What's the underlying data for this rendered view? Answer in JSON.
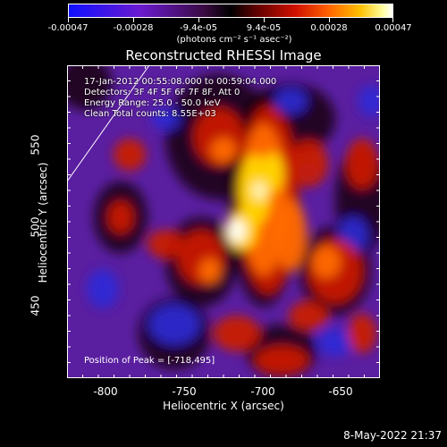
{
  "colorbar": {
    "tick_labels": [
      "-0.00047",
      "-0.00028",
      "-9.4e-05",
      "9.4e-05",
      "0.00028",
      "0.00047"
    ],
    "tick_values": [
      -0.00047,
      -0.00028,
      -9.4e-05,
      9.4e-05,
      0.00028,
      0.00047
    ],
    "unit": "(photons cm⁻² s⁻¹ asec⁻²)"
  },
  "chart_data": {
    "type": "heatmap",
    "title": "Reconstructed RHESSI Image",
    "xlabel": "Heliocentric X (arcsec)",
    "ylabel": "Heliocentric Y (arcsec)",
    "xlim": [
      -825,
      -625
    ],
    "ylim": [
      405,
      605
    ],
    "x_ticks": [
      "-800",
      "-750",
      "-700",
      "-650"
    ],
    "x_tick_values": [
      -800,
      -750,
      -700,
      -650
    ],
    "y_ticks": [
      "450",
      "500",
      "550"
    ],
    "y_tick_values": [
      450,
      500,
      550
    ],
    "peak": [
      -718,
      495
    ],
    "annotations": {
      "time": "17-Jan-2012 00:55:08.000 to 00:59:04.000",
      "detectors": "Detectors: 3F 4F 5F 6F 7F 8F, Att 0",
      "energy": "Energy Range: 25.0 - 50.0 keV",
      "clean": "Clean    Total counts: 8.55E+03",
      "peak_text": "Position of Peak = [-718,495]"
    }
  },
  "footer": {
    "timestamp": "8-May-2022 21:37"
  }
}
